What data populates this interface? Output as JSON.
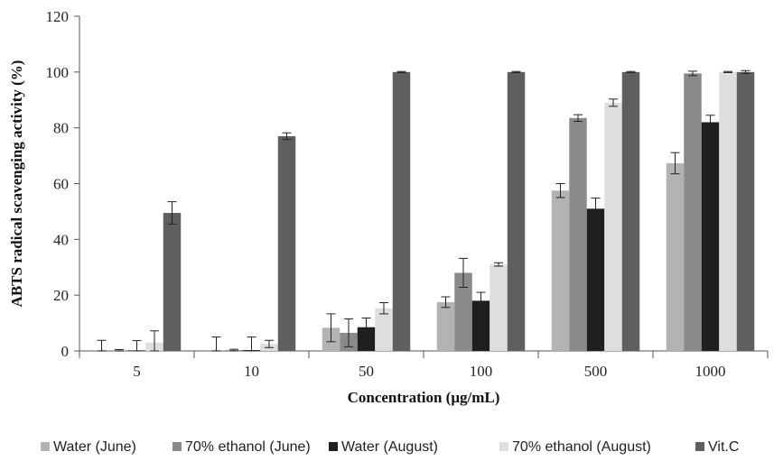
{
  "chart_data": {
    "type": "bar",
    "title": "",
    "xlabel": "Concentration (μg/mL)",
    "ylabel": "ABTS radical scavenging activity (%)",
    "ylim": [
      0,
      120
    ],
    "yticks": [
      0,
      20,
      40,
      60,
      80,
      100,
      120
    ],
    "grid": false,
    "legend_position": "bottom",
    "categories": [
      "5",
      "10",
      "50",
      "100",
      "500",
      "1000"
    ],
    "series": [
      {
        "name": "Water (June)",
        "color": "#b3b3b3",
        "values": [
          0.3,
          0.3,
          8.3,
          17.5,
          57.5,
          67.3
        ],
        "errors": [
          3.5,
          4.7,
          5.0,
          1.9,
          2.5,
          3.8
        ]
      },
      {
        "name": "70% ethanol (June)",
        "color": "#8a8a8a",
        "values": [
          0.2,
          0.3,
          6.5,
          28.0,
          83.5,
          99.5
        ],
        "errors": [
          0.3,
          0.3,
          5.0,
          5.2,
          1.2,
          0.8
        ]
      },
      {
        "name": "Water (August)",
        "color": "#1f1f1f",
        "values": [
          0.2,
          0.3,
          8.5,
          18.0,
          51.0,
          82.0
        ],
        "errors": [
          3.5,
          4.7,
          3.3,
          3.0,
          3.8,
          2.5
        ]
      },
      {
        "name": "70% ethanol (August)",
        "color": "#dedede",
        "values": [
          3.0,
          2.5,
          15.3,
          31.0,
          89.0,
          100.0
        ],
        "errors": [
          4.2,
          1.3,
          2.0,
          0.6,
          1.3,
          0.2
        ]
      },
      {
        "name": "Vit.C",
        "color": "#5f5f5f",
        "values": [
          49.5,
          77.0,
          100.0,
          100.0,
          100.0,
          100.0
        ],
        "errors": [
          4.0,
          1.2,
          0.2,
          0.2,
          0.2,
          0.5
        ]
      }
    ]
  }
}
